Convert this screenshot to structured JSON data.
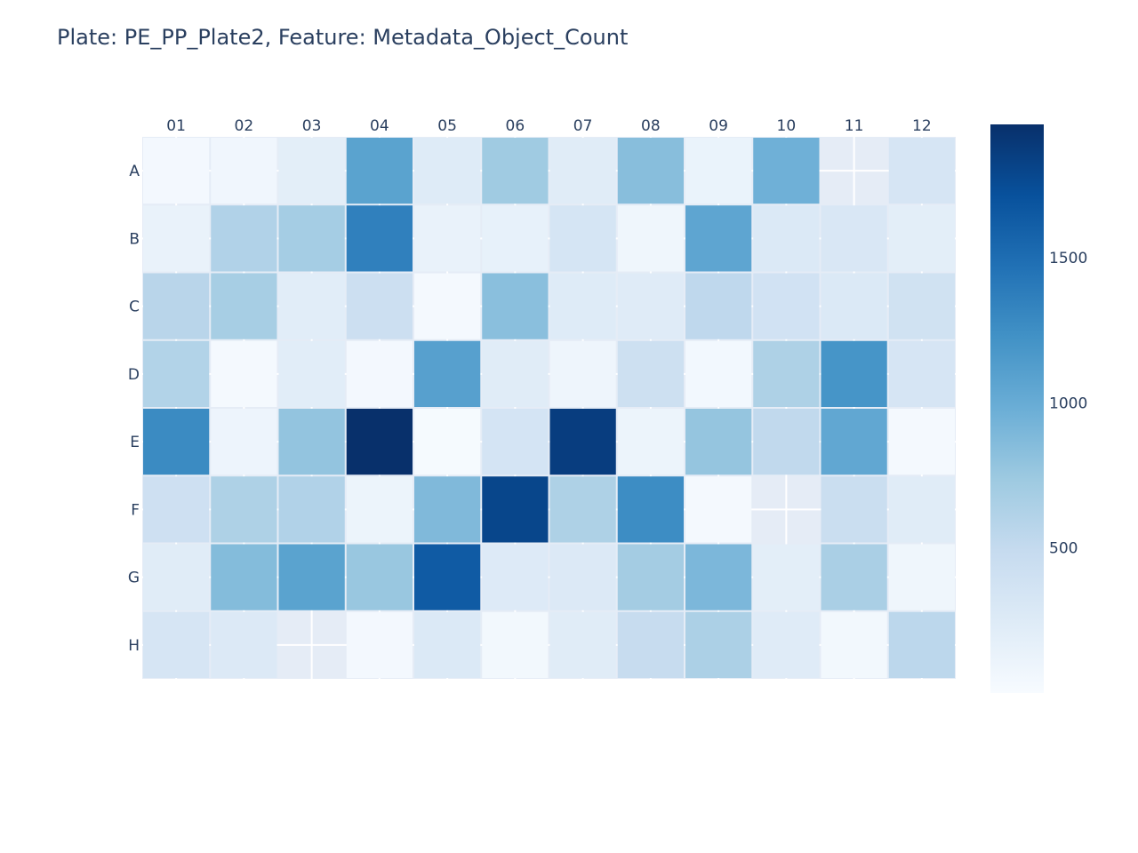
{
  "title": "Plate: PE_PP_Plate2, Feature: Metadata_Object_Count",
  "chart_data": {
    "type": "heatmap",
    "title": "Plate: PE_PP_Plate2, Feature: Metadata_Object_Count",
    "x_categories": [
      "01",
      "02",
      "03",
      "04",
      "05",
      "06",
      "07",
      "08",
      "09",
      "10",
      "11",
      "12"
    ],
    "y_categories": [
      "A",
      "B",
      "C",
      "D",
      "E",
      "F",
      "G",
      "H"
    ],
    "values": [
      [
        40,
        70,
        200,
        1080,
        250,
        720,
        230,
        840,
        130,
        960,
        null,
        330
      ],
      [
        140,
        620,
        690,
        1360,
        140,
        160,
        340,
        80,
        1060,
        280,
        300,
        200
      ],
      [
        570,
        680,
        220,
        430,
        30,
        830,
        250,
        240,
        530,
        380,
        280,
        390
      ],
      [
        610,
        25,
        220,
        40,
        1100,
        230,
        90,
        420,
        45,
        640,
        1200,
        330
      ],
      [
        1280,
        100,
        790,
        1960,
        20,
        350,
        1860,
        110,
        780,
        520,
        1040,
        30
      ],
      [
        410,
        640,
        620,
        110,
        880,
        1800,
        640,
        1260,
        30,
        null,
        450,
        230
      ],
      [
        230,
        860,
        1080,
        760,
        1640,
        260,
        270,
        700,
        900,
        200,
        660,
        80
      ],
      [
        330,
        270,
        null,
        40,
        280,
        50,
        230,
        480,
        650,
        240,
        50,
        550
      ]
    ],
    "zmin": 0,
    "zmax": 1960,
    "colorscale": "Blues",
    "colorbar_ticks": [
      500,
      1000,
      1500
    ],
    "missing_color": "#e5ecf6"
  }
}
